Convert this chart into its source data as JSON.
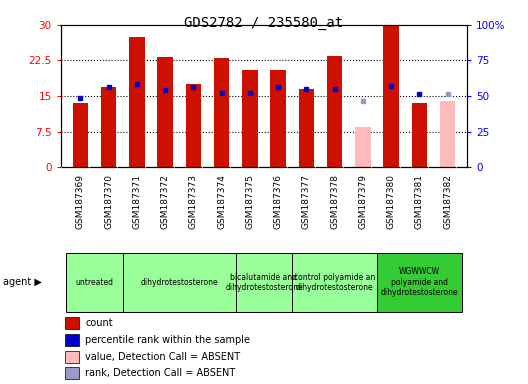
{
  "title": "GDS2782 / 235580_at",
  "samples": [
    "GSM187369",
    "GSM187370",
    "GSM187371",
    "GSM187372",
    "GSM187373",
    "GSM187374",
    "GSM187375",
    "GSM187376",
    "GSM187377",
    "GSM187378",
    "GSM187379",
    "GSM187380",
    "GSM187381",
    "GSM187382"
  ],
  "count_values": [
    13.5,
    16.8,
    27.5,
    23.2,
    17.5,
    23.0,
    20.5,
    20.5,
    16.5,
    23.5,
    null,
    30.0,
    13.5,
    null
  ],
  "count_absent": [
    null,
    null,
    null,
    null,
    null,
    null,
    null,
    null,
    null,
    null,
    8.5,
    null,
    null,
    14.0
  ],
  "percentile_values": [
    14.5,
    16.8,
    17.5,
    16.3,
    16.8,
    15.7,
    15.7,
    16.8,
    16.5,
    16.5,
    null,
    17.2,
    15.5,
    null
  ],
  "percentile_absent": [
    null,
    null,
    null,
    null,
    null,
    null,
    null,
    null,
    null,
    null,
    14.0,
    null,
    null,
    15.5
  ],
  "ylim": [
    0,
    30
  ],
  "ylim_right": [
    0,
    100
  ],
  "yticks_left": [
    0,
    7.5,
    15,
    22.5,
    30
  ],
  "ytick_labels_left": [
    "0",
    "7.5",
    "15",
    "22.5",
    "30"
  ],
  "yticks_right": [
    0,
    25,
    50,
    75,
    100
  ],
  "ytick_labels_right": [
    "0",
    "25",
    "50",
    "75",
    "100%"
  ],
  "groups": [
    {
      "label": "untreated",
      "indices": [
        0,
        1
      ],
      "color": "#99ff99"
    },
    {
      "label": "dihydrotestosterone",
      "indices": [
        2,
        3,
        4,
        5
      ],
      "color": "#99ff99"
    },
    {
      "label": "bicalutamide and\ndihydrotestosterone",
      "indices": [
        6,
        7
      ],
      "color": "#99ff99"
    },
    {
      "label": "control polyamide an\ndihydrotestosterone",
      "indices": [
        8,
        9,
        10
      ],
      "color": "#99ff99"
    },
    {
      "label": "WGWWCW\npolyamide and\ndihydrotestosterone",
      "indices": [
        11,
        12,
        13
      ],
      "color": "#33cc33"
    }
  ],
  "count_color": "#cc1100",
  "count_absent_color": "#ffbbbb",
  "percentile_color": "#0000cc",
  "percentile_absent_color": "#9999cc",
  "bar_width": 0.55,
  "bg_color": "#cccccc",
  "plot_bg": "#ffffff",
  "legend_items": [
    {
      "label": "count",
      "color": "#cc1100"
    },
    {
      "label": "percentile rank within the sample",
      "color": "#0000cc"
    },
    {
      "label": "value, Detection Call = ABSENT",
      "color": "#ffbbbb"
    },
    {
      "label": "rank, Detection Call = ABSENT",
      "color": "#9999cc"
    }
  ]
}
